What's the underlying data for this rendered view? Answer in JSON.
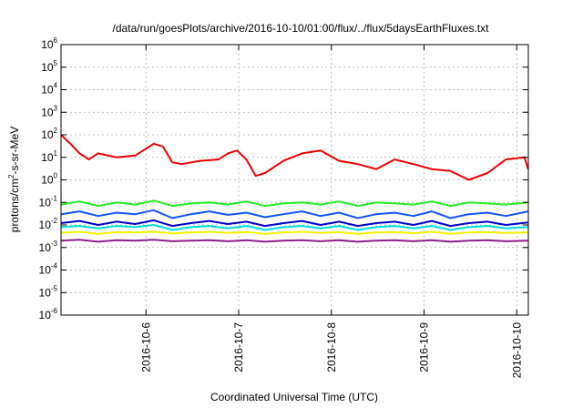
{
  "chart_data": {
    "type": "line",
    "title": "/data/run/goesPlots/archive/2016-10-10/01:00/flux/../flux/5daysEarthFluxes.txt",
    "xlabel": "Coordinated Universal Time (UTC)",
    "ylabel_main": "protons/cm",
    "ylabel_sup": "2",
    "ylabel_rest": "-s-sr-MeV",
    "x_scale": "date",
    "xlim": [
      "2016-10-05 02:00",
      "2016-10-10 03:00"
    ],
    "x_ticks": [
      "2016-10-6",
      "2016-10-7",
      "2016-10-8",
      "2016-10-9",
      "2016-10-10"
    ],
    "y_scale": "log",
    "ylim": [
      1e-06,
      1000000.0
    ],
    "y_ticks": [
      {
        "base": "10",
        "exp": "-6"
      },
      {
        "base": "10",
        "exp": "-5"
      },
      {
        "base": "10",
        "exp": "-4"
      },
      {
        "base": "10",
        "exp": "-3"
      },
      {
        "base": "10",
        "exp": "-2"
      },
      {
        "base": "10",
        "exp": "-1"
      },
      {
        "base": "10",
        "exp": "0"
      },
      {
        "base": "10",
        "exp": "1"
      },
      {
        "base": "10",
        "exp": "2"
      },
      {
        "base": "10",
        "exp": "3"
      },
      {
        "base": "10",
        "exp": "4"
      },
      {
        "base": "10",
        "exp": "5"
      },
      {
        "base": "10",
        "exp": "6"
      }
    ],
    "grid": true,
    "colors": {
      "red": "#ee0000",
      "green": "#22ee22",
      "blue": "#1155ff",
      "darkblue": "#0000cc",
      "cyan": "#00dddd",
      "yellow": "#f2f200",
      "purple": "#882288"
    },
    "series": [
      {
        "color": "red",
        "x_days": [
          0.0,
          0.1,
          0.2,
          0.3,
          0.4,
          0.6,
          0.8,
          1.0,
          1.1,
          1.2,
          1.3,
          1.5,
          1.7,
          1.8,
          1.9,
          2.0,
          2.1,
          2.2,
          2.4,
          2.6,
          2.8,
          3.0,
          3.2,
          3.4,
          3.6,
          3.8,
          4.0,
          4.2,
          4.4,
          4.6,
          4.8,
          5.0,
          5.04
        ],
        "y": [
          100,
          40,
          15,
          8,
          15,
          10,
          12,
          40,
          30,
          6,
          5,
          7,
          8,
          15,
          20,
          8,
          1.5,
          2,
          7,
          15,
          20,
          7,
          5,
          3,
          8,
          5,
          3,
          2.5,
          1,
          2,
          8,
          10,
          3
        ]
      },
      {
        "color": "green",
        "x_days": [
          0.0,
          0.2,
          0.4,
          0.6,
          0.8,
          1.0,
          1.2,
          1.4,
          1.6,
          1.8,
          2.0,
          2.2,
          2.4,
          2.6,
          2.8,
          3.0,
          3.2,
          3.4,
          3.6,
          3.8,
          4.0,
          4.2,
          4.4,
          4.6,
          4.8,
          5.04
        ],
        "y": [
          0.08,
          0.11,
          0.07,
          0.1,
          0.08,
          0.12,
          0.07,
          0.09,
          0.1,
          0.08,
          0.11,
          0.07,
          0.09,
          0.1,
          0.08,
          0.11,
          0.07,
          0.1,
          0.09,
          0.08,
          0.11,
          0.07,
          0.1,
          0.09,
          0.08,
          0.1
        ]
      },
      {
        "color": "blue",
        "x_days": [
          0.0,
          0.2,
          0.4,
          0.6,
          0.8,
          1.0,
          1.2,
          1.4,
          1.6,
          1.8,
          2.0,
          2.2,
          2.4,
          2.6,
          2.8,
          3.0,
          3.2,
          3.4,
          3.6,
          3.8,
          4.0,
          4.2,
          4.4,
          4.6,
          4.8,
          5.04
        ],
        "y": [
          0.03,
          0.04,
          0.025,
          0.035,
          0.03,
          0.045,
          0.02,
          0.03,
          0.04,
          0.028,
          0.035,
          0.022,
          0.03,
          0.04,
          0.025,
          0.035,
          0.02,
          0.03,
          0.035,
          0.025,
          0.04,
          0.02,
          0.03,
          0.035,
          0.025,
          0.04
        ]
      },
      {
        "color": "darkblue",
        "x_days": [
          0.0,
          0.2,
          0.4,
          0.6,
          0.8,
          1.0,
          1.2,
          1.4,
          1.6,
          1.8,
          2.0,
          2.2,
          2.4,
          2.6,
          2.8,
          3.0,
          3.2,
          3.4,
          3.6,
          3.8,
          4.0,
          4.2,
          4.4,
          4.6,
          4.8,
          5.04
        ],
        "y": [
          0.012,
          0.015,
          0.01,
          0.014,
          0.011,
          0.016,
          0.009,
          0.012,
          0.015,
          0.011,
          0.014,
          0.009,
          0.012,
          0.015,
          0.01,
          0.014,
          0.009,
          0.012,
          0.014,
          0.01,
          0.015,
          0.009,
          0.012,
          0.014,
          0.01,
          0.013
        ]
      },
      {
        "color": "cyan",
        "x_days": [
          0.0,
          0.2,
          0.4,
          0.6,
          0.8,
          1.0,
          1.2,
          1.4,
          1.6,
          1.8,
          2.0,
          2.2,
          2.4,
          2.6,
          2.8,
          3.0,
          3.2,
          3.4,
          3.6,
          3.8,
          4.0,
          4.2,
          4.4,
          4.6,
          4.8,
          5.04
        ],
        "y": [
          0.008,
          0.009,
          0.007,
          0.009,
          0.008,
          0.01,
          0.006,
          0.008,
          0.009,
          0.007,
          0.009,
          0.006,
          0.008,
          0.009,
          0.007,
          0.009,
          0.006,
          0.008,
          0.009,
          0.007,
          0.009,
          0.006,
          0.008,
          0.009,
          0.007,
          0.008
        ]
      },
      {
        "color": "yellow",
        "x_days": [
          0.0,
          0.2,
          0.4,
          0.6,
          0.8,
          1.0,
          1.2,
          1.4,
          1.6,
          1.8,
          2.0,
          2.2,
          2.4,
          2.6,
          2.8,
          3.0,
          3.2,
          3.4,
          3.6,
          3.8,
          4.0,
          4.2,
          4.4,
          4.6,
          4.8,
          5.04
        ],
        "y": [
          0.0045,
          0.005,
          0.004,
          0.0048,
          0.0046,
          0.005,
          0.0042,
          0.0046,
          0.005,
          0.0044,
          0.0048,
          0.004,
          0.0046,
          0.005,
          0.0044,
          0.0048,
          0.004,
          0.0046,
          0.0048,
          0.0043,
          0.005,
          0.004,
          0.0046,
          0.0048,
          0.0044,
          0.0046
        ]
      },
      {
        "color": "purple",
        "x_days": [
          0.0,
          0.2,
          0.4,
          0.6,
          0.8,
          1.0,
          1.2,
          1.4,
          1.6,
          1.8,
          2.0,
          2.2,
          2.4,
          2.6,
          2.8,
          3.0,
          3.2,
          3.4,
          3.6,
          3.8,
          4.0,
          4.2,
          4.4,
          4.6,
          4.8,
          5.04
        ],
        "y": [
          0.002,
          0.0022,
          0.0018,
          0.0021,
          0.002,
          0.0022,
          0.0019,
          0.002,
          0.0021,
          0.0019,
          0.0021,
          0.0018,
          0.002,
          0.0021,
          0.0019,
          0.0021,
          0.0018,
          0.002,
          0.0021,
          0.0019,
          0.0021,
          0.0018,
          0.002,
          0.0021,
          0.0019,
          0.002
        ]
      }
    ]
  }
}
